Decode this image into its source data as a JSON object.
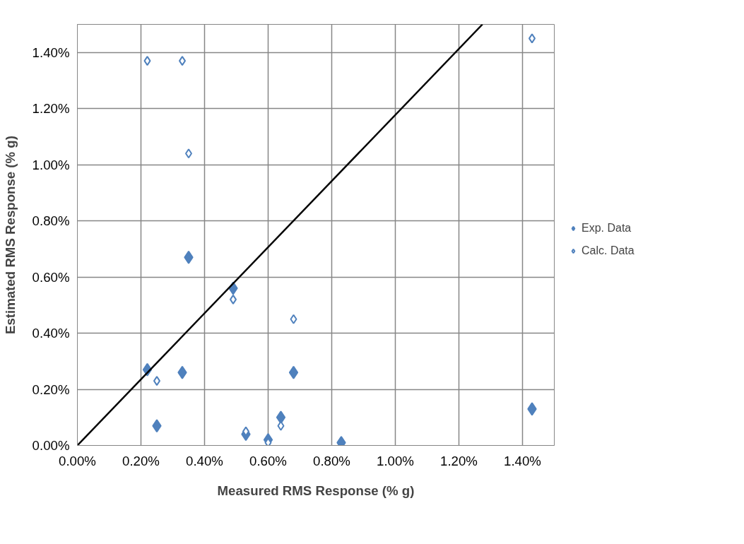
{
  "chart_data": {
    "type": "scatter",
    "xlabel": "Measured RMS Response (% g)",
    "ylabel": "Estimated RMS Response (% g)",
    "xlim": [
      0,
      1.5
    ],
    "ylim": [
      0,
      1.5
    ],
    "xticks": [
      {
        "value": 0,
        "label": "0.00%"
      },
      {
        "value": 0.2,
        "label": "0.20%"
      },
      {
        "value": 0.4,
        "label": "0.40%"
      },
      {
        "value": 0.6,
        "label": "0.60%"
      },
      {
        "value": 0.8,
        "label": "0.80%"
      },
      {
        "value": 1.0,
        "label": "1.00%"
      },
      {
        "value": 1.2,
        "label": "1.20%"
      },
      {
        "value": 1.4,
        "label": "1.40%"
      }
    ],
    "yticks": [
      {
        "value": 0,
        "label": "0.00%"
      },
      {
        "value": 0.2,
        "label": "0.20%"
      },
      {
        "value": 0.4,
        "label": "0.40%"
      },
      {
        "value": 0.6,
        "label": "0.60%"
      },
      {
        "value": 0.8,
        "label": "0.80%"
      },
      {
        "value": 1.0,
        "label": "1.00%"
      },
      {
        "value": 1.2,
        "label": "1.20%"
      },
      {
        "value": 1.4,
        "label": "1.40%"
      }
    ],
    "grid": true,
    "legend": "right",
    "marker": "diamond",
    "series": [
      {
        "name": "Exp. Data",
        "color": "#4f81bd",
        "x": [
          0.35,
          0.49,
          0.22,
          0.33,
          0.68,
          0.25,
          0.64,
          0.53,
          0.6,
          0.83,
          1.43
        ],
        "values": [
          0.67,
          0.56,
          0.27,
          0.26,
          0.26,
          0.07,
          0.1,
          0.04,
          0.02,
          0.01,
          0.13
        ]
      },
      {
        "name": "Calc. Data",
        "color": "#4f81bd",
        "marker": "diamond_open",
        "x": [
          0.22,
          0.33,
          0.35,
          1.43,
          0.49,
          0.68,
          0.25,
          0.53,
          0.64,
          0.6
        ],
        "values": [
          1.37,
          1.37,
          1.04,
          1.45,
          0.52,
          0.45,
          0.23,
          0.05,
          0.07,
          0.01
        ]
      },
      {
        "type": "line",
        "marker": "none",
        "color": "#000000",
        "x": [
          0,
          1.274
        ],
        "values": [
          0,
          1.5
        ]
      }
    ]
  }
}
